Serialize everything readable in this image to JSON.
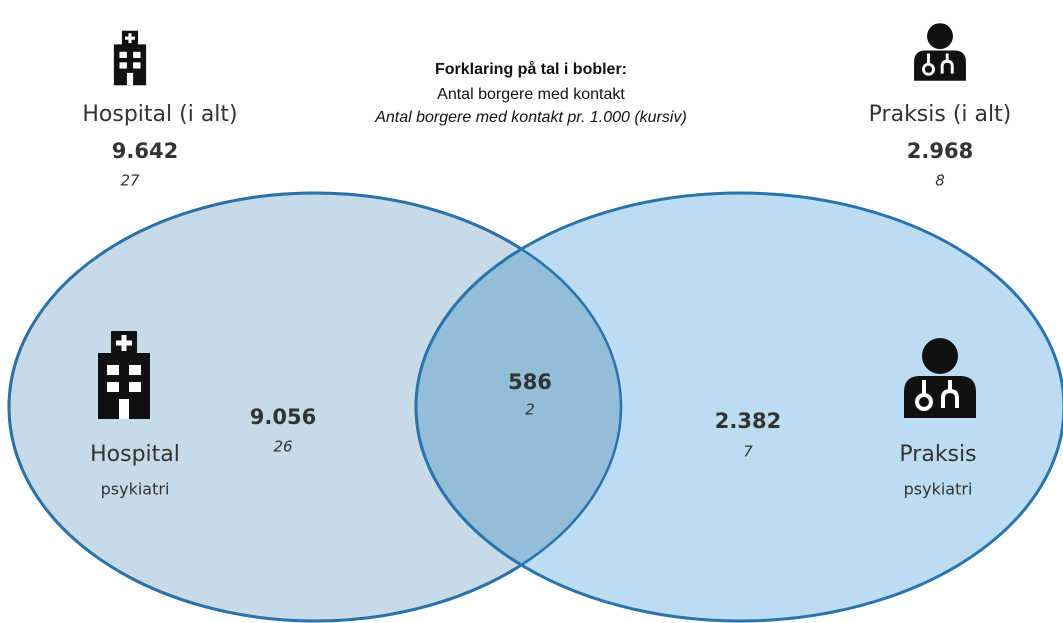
{
  "legend": {
    "title": "Forklaring på tal i bobler:",
    "line1": "Antal borgere med kontakt",
    "line2": "Antal borgere med kontakt pr. 1.000 (kursiv)"
  },
  "totals": [
    {
      "label": "Hospital (i alt)",
      "count": "9.642",
      "per_1000": "27"
    },
    {
      "label": "Praksis (i alt)",
      "count": "2.968",
      "per_1000": "8"
    }
  ],
  "sets": [
    {
      "label": "Hospital",
      "sublabel": "psykiatri",
      "count": "9.056",
      "per_1000": "26"
    },
    {
      "label": "Praksis",
      "sublabel": "psykiatri",
      "count": "2.382",
      "per_1000": "7"
    }
  ],
  "overlap": {
    "count": "586",
    "per_1000": "2"
  }
}
